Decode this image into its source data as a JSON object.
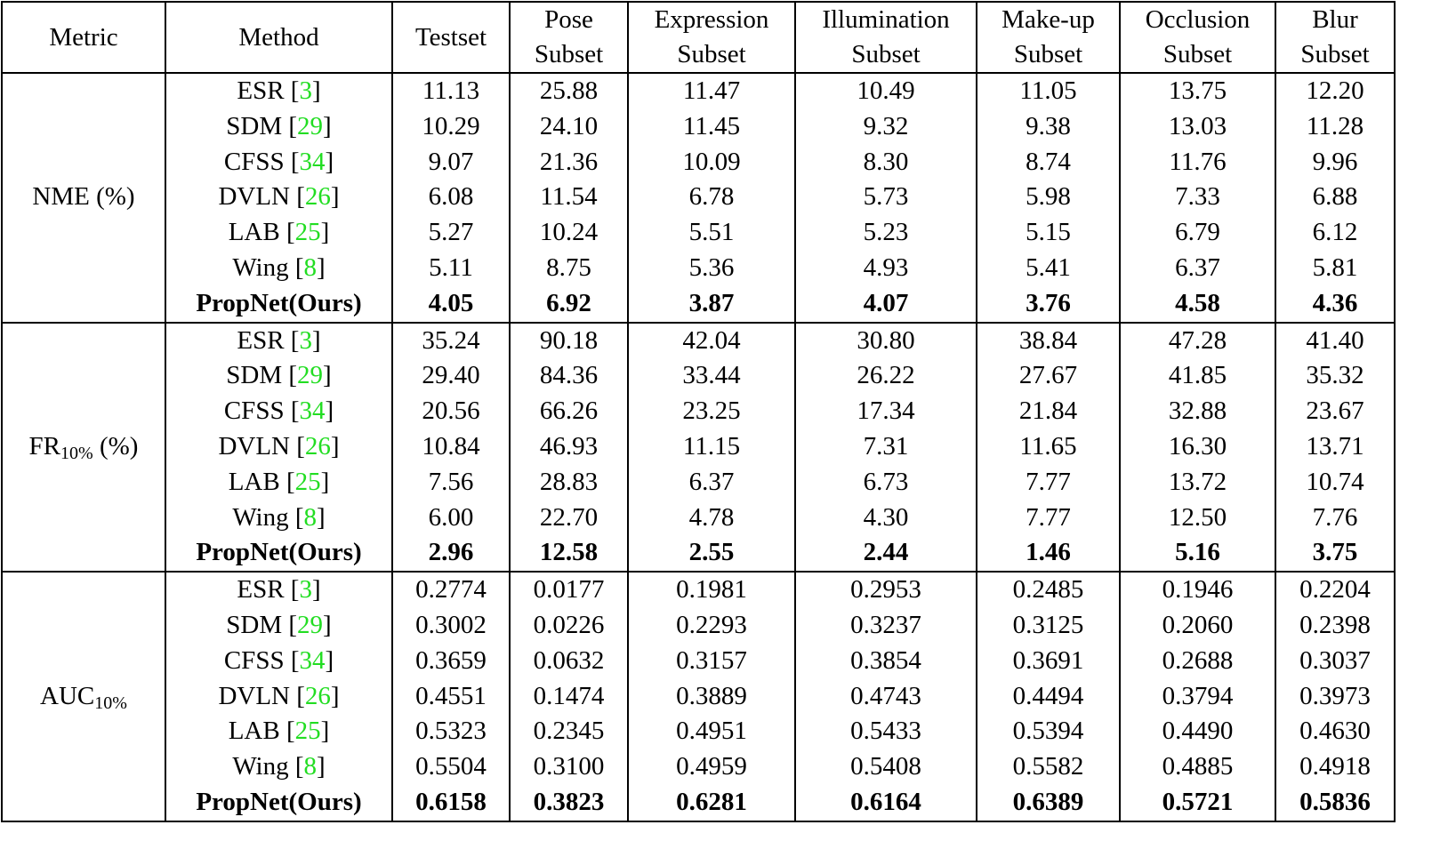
{
  "table": {
    "header": [
      [
        "Metric"
      ],
      [
        "Method"
      ],
      [
        "Testset"
      ],
      [
        "Pose",
        "Subset"
      ],
      [
        "Expression",
        "Subset"
      ],
      [
        "Illumination",
        "Subset"
      ],
      [
        "Make-up",
        "Subset"
      ],
      [
        "Occlusion",
        "Subset"
      ],
      [
        "Blur",
        "Subset"
      ]
    ],
    "groups": [
      {
        "metric": {
          "main": "NME (%)"
        },
        "rows": [
          {
            "method": {
              "name": "ESR [",
              "ref": "3",
              "close": "]"
            },
            "values": [
              "11.13",
              "25.88",
              "11.47",
              "10.49",
              "11.05",
              "13.75",
              "12.20"
            ]
          },
          {
            "method": {
              "name": "SDM [",
              "ref": "29",
              "close": "]"
            },
            "values": [
              "10.29",
              "24.10",
              "11.45",
              "9.32",
              "9.38",
              "13.03",
              "11.28"
            ]
          },
          {
            "method": {
              "name": "CFSS [",
              "ref": "34",
              "close": "]"
            },
            "values": [
              "9.07",
              "21.36",
              "10.09",
              "8.30",
              "8.74",
              "11.76",
              "9.96"
            ]
          },
          {
            "method": {
              "name": "DVLN [",
              "ref": "26",
              "close": "]"
            },
            "values": [
              "6.08",
              "11.54",
              "6.78",
              "5.73",
              "5.98",
              "7.33",
              "6.88"
            ]
          },
          {
            "method": {
              "name": "LAB [",
              "ref": "25",
              "close": "]"
            },
            "values": [
              "5.27",
              "10.24",
              "5.51",
              "5.23",
              "5.15",
              "6.79",
              "6.12"
            ]
          },
          {
            "method": {
              "name": "Wing [",
              "ref": "8",
              "close": "]"
            },
            "values": [
              "5.11",
              "8.75",
              "5.36",
              "4.93",
              "5.41",
              "6.37",
              "5.81"
            ]
          },
          {
            "method": {
              "name": "PropNet(Ours)"
            },
            "values": [
              "4.05",
              "6.92",
              "3.87",
              "4.07",
              "3.76",
              "4.58",
              "4.36"
            ]
          }
        ]
      },
      {
        "metric": {
          "main": "FR",
          "sub": "10%",
          "suffix": " (%)"
        },
        "rows": [
          {
            "method": {
              "name": "ESR [",
              "ref": "3",
              "close": "]"
            },
            "values": [
              "35.24",
              "90.18",
              "42.04",
              "30.80",
              "38.84",
              "47.28",
              "41.40"
            ]
          },
          {
            "method": {
              "name": "SDM [",
              "ref": "29",
              "close": "]"
            },
            "values": [
              "29.40",
              "84.36",
              "33.44",
              "26.22",
              "27.67",
              "41.85",
              "35.32"
            ]
          },
          {
            "method": {
              "name": "CFSS [",
              "ref": "34",
              "close": "]"
            },
            "values": [
              "20.56",
              "66.26",
              "23.25",
              "17.34",
              "21.84",
              "32.88",
              "23.67"
            ]
          },
          {
            "method": {
              "name": "DVLN [",
              "ref": "26",
              "close": "]"
            },
            "values": [
              "10.84",
              "46.93",
              "11.15",
              "7.31",
              "11.65",
              "16.30",
              "13.71"
            ]
          },
          {
            "method": {
              "name": "LAB [",
              "ref": "25",
              "close": "]"
            },
            "values": [
              "7.56",
              "28.83",
              "6.37",
              "6.73",
              "7.77",
              "13.72",
              "10.74"
            ]
          },
          {
            "method": {
              "name": "Wing [",
              "ref": "8",
              "close": "]"
            },
            "values": [
              "6.00",
              "22.70",
              "4.78",
              "4.30",
              "7.77",
              "12.50",
              "7.76"
            ]
          },
          {
            "method": {
              "name": "PropNet(Ours)"
            },
            "values": [
              "2.96",
              "12.58",
              "2.55",
              "2.44",
              "1.46",
              "5.16",
              "3.75"
            ]
          }
        ]
      },
      {
        "metric": {
          "main": "AUC",
          "sub": "10%"
        },
        "rows": [
          {
            "method": {
              "name": "ESR [",
              "ref": "3",
              "close": "]"
            },
            "values": [
              "0.2774",
              "0.0177",
              "0.1981",
              "0.2953",
              "0.2485",
              "0.1946",
              "0.2204"
            ]
          },
          {
            "method": {
              "name": "SDM [",
              "ref": "29",
              "close": "]"
            },
            "values": [
              "0.3002",
              "0.0226",
              "0.2293",
              "0.3237",
              "0.3125",
              "0.2060",
              "0.2398"
            ]
          },
          {
            "method": {
              "name": "CFSS [",
              "ref": "34",
              "close": "]"
            },
            "values": [
              "0.3659",
              "0.0632",
              "0.3157",
              "0.3854",
              "0.3691",
              "0.2688",
              "0.3037"
            ]
          },
          {
            "method": {
              "name": "DVLN [",
              "ref": "26",
              "close": "]"
            },
            "values": [
              "0.4551",
              "0.1474",
              "0.3889",
              "0.4743",
              "0.4494",
              "0.3794",
              "0.3973"
            ]
          },
          {
            "method": {
              "name": "LAB [",
              "ref": "25",
              "close": "]"
            },
            "values": [
              "0.5323",
              "0.2345",
              "0.4951",
              "0.5433",
              "0.5394",
              "0.4490",
              "0.4630"
            ]
          },
          {
            "method": {
              "name": "Wing [",
              "ref": "8",
              "close": "]"
            },
            "values": [
              "0.5504",
              "0.3100",
              "0.4959",
              "0.5408",
              "0.5582",
              "0.4885",
              "0.4918"
            ]
          },
          {
            "method": {
              "name": "PropNet(Ours)"
            },
            "values": [
              "0.6158",
              "0.3823",
              "0.6281",
              "0.6164",
              "0.6389",
              "0.5721",
              "0.5836"
            ]
          }
        ]
      }
    ]
  }
}
